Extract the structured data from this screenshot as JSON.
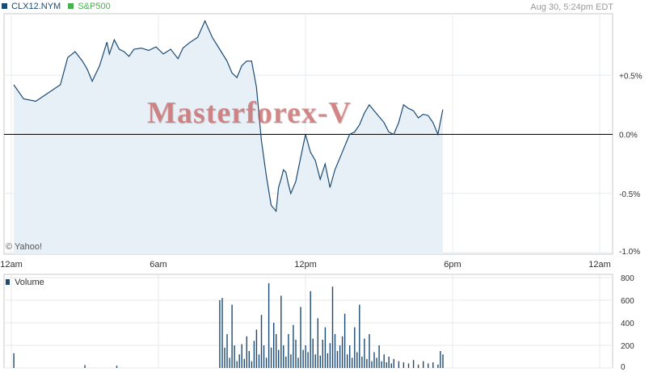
{
  "legend": [
    {
      "symbol": "CLX12.NYM",
      "color": "#1b4a74"
    },
    {
      "symbol": "S&P500",
      "color": "#4caf50"
    }
  ],
  "timestamp": "Aug 30, 5:24pm EDT",
  "watermark": "Masterforex-V",
  "credit": "© Yahoo!",
  "volume_label": "Volume",
  "chart_data": [
    {
      "type": "area",
      "title": "",
      "series_name": "CLX12.NYM",
      "ylim": [
        -1.0,
        1.0
      ],
      "y_ticks": [
        {
          "value": 0.5,
          "label": "+0.5%"
        },
        {
          "value": 0.0,
          "label": "0.0%"
        },
        {
          "value": -0.5,
          "label": "-0.5%"
        },
        {
          "value": -1.0,
          "label": "-1.0%"
        }
      ],
      "x_ticks": [
        {
          "hour": 0,
          "label": "12am"
        },
        {
          "hour": 6,
          "label": "6am"
        },
        {
          "hour": 12,
          "label": "12pm"
        },
        {
          "hour": 18,
          "label": "6pm"
        },
        {
          "hour": 24,
          "label": "12am"
        }
      ],
      "baseline": 0.0,
      "grid": true,
      "x": [
        0.1,
        0.5,
        1.0,
        1.5,
        2.0,
        2.3,
        2.6,
        2.9,
        3.1,
        3.3,
        3.6,
        3.9,
        4.0,
        4.2,
        4.4,
        4.6,
        4.8,
        5.0,
        5.3,
        5.6,
        5.9,
        6.2,
        6.5,
        6.8,
        7.0,
        7.3,
        7.6,
        7.9,
        8.2,
        8.5,
        8.8,
        9.0,
        9.2,
        9.4,
        9.6,
        9.8,
        10.0,
        10.2,
        10.4,
        10.6,
        10.8,
        10.9,
        11.0,
        11.1,
        11.2,
        11.3,
        11.4,
        11.6,
        11.8,
        12.0,
        12.2,
        12.4,
        12.6,
        12.8,
        13.0,
        13.2,
        13.4,
        13.6,
        13.8,
        14.0,
        14.2,
        14.4,
        14.6,
        14.8,
        15.0,
        15.2,
        15.4,
        15.6,
        15.8,
        16.0,
        16.2,
        16.4,
        16.6,
        16.8,
        17.0,
        17.2,
        17.4,
        17.6
      ],
      "y": [
        0.42,
        0.3,
        0.28,
        0.35,
        0.42,
        0.65,
        0.7,
        0.62,
        0.55,
        0.45,
        0.58,
        0.78,
        0.68,
        0.8,
        0.72,
        0.7,
        0.66,
        0.72,
        0.73,
        0.71,
        0.74,
        0.68,
        0.72,
        0.64,
        0.73,
        0.78,
        0.82,
        0.96,
        0.82,
        0.72,
        0.62,
        0.52,
        0.48,
        0.58,
        0.62,
        0.62,
        0.4,
        -0.05,
        -0.35,
        -0.6,
        -0.65,
        -0.45,
        -0.38,
        -0.3,
        -0.32,
        -0.42,
        -0.5,
        -0.4,
        -0.2,
        0.0,
        -0.15,
        -0.22,
        -0.38,
        -0.25,
        -0.45,
        -0.3,
        -0.2,
        -0.1,
        0.0,
        0.02,
        0.08,
        0.18,
        0.25,
        0.2,
        0.15,
        0.1,
        0.02,
        0.0,
        0.1,
        0.25,
        0.22,
        0.2,
        0.14,
        0.17,
        0.16,
        0.1,
        0.0,
        0.21
      ]
    },
    {
      "type": "bar",
      "title": "",
      "series_name": "Volume",
      "ylim": [
        0,
        800
      ],
      "y_ticks": [
        0,
        200,
        400,
        600,
        800
      ],
      "x": [
        0.1,
        3.0,
        4.3,
        8.5,
        8.6,
        8.7,
        8.8,
        8.9,
        9.0,
        9.1,
        9.2,
        9.3,
        9.4,
        9.5,
        9.6,
        9.7,
        9.8,
        9.9,
        10.0,
        10.1,
        10.2,
        10.3,
        10.4,
        10.5,
        10.6,
        10.7,
        10.8,
        10.9,
        11.0,
        11.1,
        11.2,
        11.3,
        11.4,
        11.5,
        11.6,
        11.7,
        11.8,
        11.9,
        12.0,
        12.1,
        12.2,
        12.3,
        12.4,
        12.5,
        12.6,
        12.7,
        12.8,
        12.9,
        13.0,
        13.1,
        13.2,
        13.3,
        13.4,
        13.5,
        13.6,
        13.7,
        13.8,
        13.9,
        14.0,
        14.1,
        14.2,
        14.3,
        14.4,
        14.5,
        14.6,
        14.7,
        14.8,
        14.9,
        15.0,
        15.1,
        15.2,
        15.3,
        15.4,
        15.5,
        15.6,
        15.8,
        16.0,
        16.2,
        16.4,
        16.6,
        16.8,
        17.0,
        17.2,
        17.4,
        17.5,
        17.6
      ],
      "values": [
        130,
        25,
        20,
        600,
        620,
        180,
        300,
        90,
        560,
        200,
        60,
        120,
        210,
        80,
        280,
        150,
        60,
        240,
        340,
        120,
        470,
        200,
        90,
        750,
        180,
        400,
        300,
        160,
        640,
        200,
        100,
        300,
        120,
        380,
        250,
        90,
        540,
        160,
        200,
        140,
        680,
        260,
        120,
        440,
        110,
        250,
        360,
        130,
        220,
        720,
        300,
        150,
        200,
        280,
        480,
        120,
        200,
        90,
        360,
        140,
        560,
        100,
        260,
        80,
        300,
        60,
        140,
        90,
        200,
        60,
        120,
        50,
        100,
        40,
        80,
        60,
        50,
        40,
        70,
        30,
        60,
        40,
        50,
        30,
        150,
        120
      ]
    }
  ]
}
